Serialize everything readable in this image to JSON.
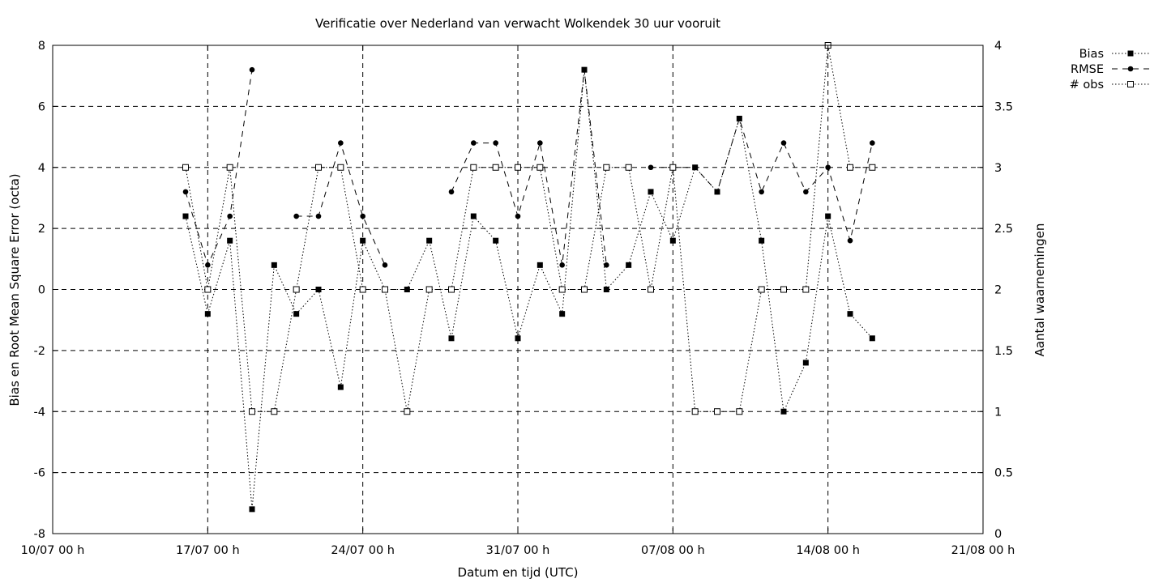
{
  "chart_data": {
    "type": "line",
    "title": "Verificatie over Nederland van verwacht Wolkendek 30 uur vooruit",
    "xlabel": "Datum en tijd (UTC)",
    "ylabel": "Bias en Root Mean Square Error (octa)",
    "y2label": "Aantal waarnemingen",
    "x_ticks": [
      "10/07 00 h",
      "17/07 00 h",
      "24/07 00 h",
      "31/07 00 h",
      "07/08 00 h",
      "14/08 00 h",
      "21/08 00 h"
    ],
    "y_ticks": [
      "-8",
      "-6",
      "-4",
      "-2",
      "0",
      "2",
      "4",
      "6",
      "8"
    ],
    "y2_ticks": [
      "0",
      "0.5",
      "1",
      "1.5",
      "2",
      "2.5",
      "3",
      "3.5",
      "4"
    ],
    "xlim": [
      0,
      42
    ],
    "ylim": [
      -8,
      8
    ],
    "y2lim": [
      0,
      4
    ],
    "grid": true,
    "legend_position": "top-right outside",
    "x": [
      6,
      7,
      8,
      9,
      10,
      11,
      12,
      13,
      14,
      15,
      16,
      17,
      18,
      19,
      20,
      21,
      22,
      23,
      24,
      25,
      26,
      27,
      28,
      29,
      30,
      31,
      32,
      33,
      34,
      35,
      36,
      37,
      38,
      39
    ],
    "series": [
      {
        "name": "Bias",
        "axis": "left",
        "style": "dotted",
        "marker": "filled-square",
        "values": [
          2.4,
          -0.8,
          1.6,
          -7.2,
          0.8,
          -0.8,
          0,
          -3.2,
          1.6,
          0,
          0,
          1.6,
          -1.6,
          2.4,
          1.6,
          -1.6,
          0.8,
          -0.8,
          7.2,
          0,
          0.8,
          3.2,
          1.6,
          4,
          3.2,
          5.6,
          1.6,
          -4,
          -2.4,
          2.4,
          -0.8,
          -1.6,
          null,
          null
        ]
      },
      {
        "name": "RMSE",
        "axis": "left",
        "style": "dashed",
        "marker": "filled-circle",
        "values": [
          3.2,
          0.8,
          2.4,
          7.2,
          null,
          2.4,
          2.4,
          4.8,
          2.4,
          0.8,
          null,
          null,
          3.2,
          4.8,
          4.8,
          2.4,
          4.8,
          0.8,
          7.2,
          0.8,
          null,
          4,
          4,
          4,
          3.2,
          5.6,
          3.2,
          4.8,
          3.2,
          4,
          1.6,
          4.8,
          null,
          null
        ]
      },
      {
        "name": "# obs",
        "axis": "right",
        "style": "dotted",
        "marker": "open-square",
        "values": [
          3,
          2,
          3,
          1,
          1,
          2,
          3,
          3,
          2,
          2,
          1,
          2,
          2,
          3,
          3,
          3,
          3,
          2,
          2,
          3,
          3,
          2,
          3,
          1,
          1,
          1,
          2,
          2,
          2,
          4,
          3,
          3,
          null,
          null
        ]
      }
    ]
  }
}
